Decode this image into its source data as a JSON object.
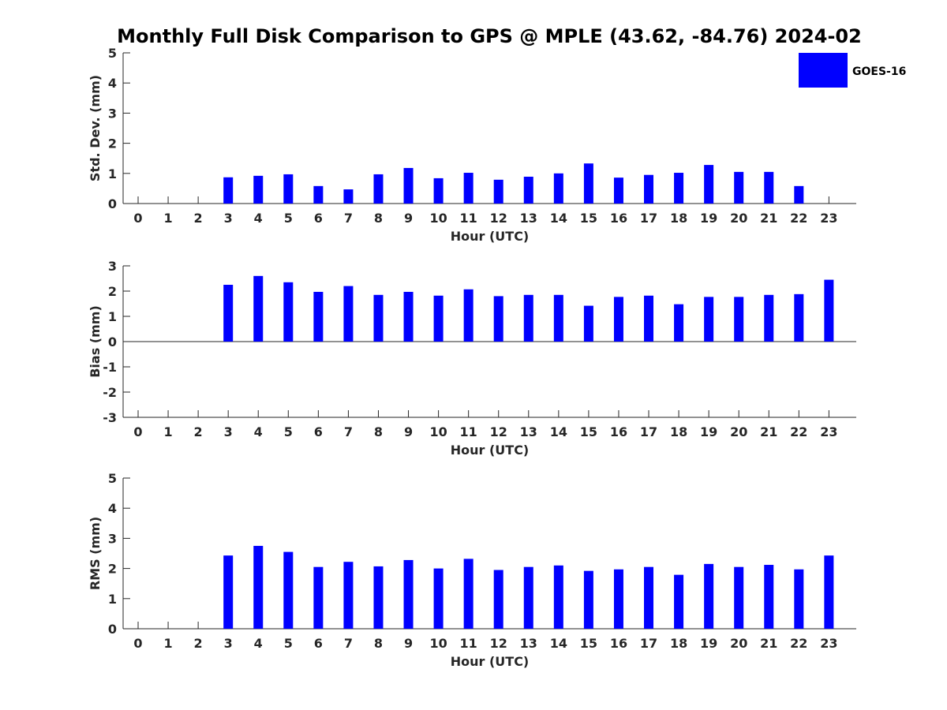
{
  "title": "Monthly Full Disk Comparison to GPS @ MPLE (43.62, -84.76) 2024-02",
  "legend": {
    "label": "GOES-16",
    "color": "#0000ff"
  },
  "chart_data": [
    {
      "type": "bar",
      "ylabel": "Std. Dev. (mm)",
      "xlabel": "Hour (UTC)",
      "categories": [
        "0",
        "1",
        "2",
        "3",
        "4",
        "5",
        "6",
        "7",
        "8",
        "9",
        "10",
        "11",
        "12",
        "13",
        "14",
        "15",
        "16",
        "17",
        "18",
        "19",
        "20",
        "21",
        "22",
        "23"
      ],
      "ylim": [
        0,
        5
      ],
      "yticks": [
        "0",
        "1",
        "2",
        "3",
        "4",
        "5"
      ],
      "values": [
        null,
        null,
        null,
        0.87,
        0.92,
        0.97,
        0.58,
        0.47,
        0.97,
        1.18,
        0.84,
        1.02,
        0.79,
        0.89,
        1.0,
        1.33,
        0.86,
        0.95,
        1.02,
        1.28,
        1.05,
        1.05,
        0.58,
        null
      ]
    },
    {
      "type": "bar",
      "ylabel": "Bias (mm)",
      "xlabel": "Hour (UTC)",
      "categories": [
        "0",
        "1",
        "2",
        "3",
        "4",
        "5",
        "6",
        "7",
        "8",
        "9",
        "10",
        "11",
        "12",
        "13",
        "14",
        "15",
        "16",
        "17",
        "18",
        "19",
        "20",
        "21",
        "22",
        "23"
      ],
      "ylim": [
        -3,
        3
      ],
      "yticks": [
        "-3",
        "-2",
        "-1",
        "0",
        "1",
        "2",
        "3"
      ],
      "values": [
        null,
        null,
        null,
        2.25,
        2.6,
        2.35,
        1.97,
        2.2,
        1.85,
        1.97,
        1.82,
        2.07,
        1.8,
        1.85,
        1.85,
        1.42,
        1.77,
        1.82,
        1.48,
        1.77,
        1.77,
        1.85,
        1.88,
        2.45
      ]
    },
    {
      "type": "bar",
      "ylabel": "RMS (mm)",
      "xlabel": "Hour (UTC)",
      "categories": [
        "0",
        "1",
        "2",
        "3",
        "4",
        "5",
        "6",
        "7",
        "8",
        "9",
        "10",
        "11",
        "12",
        "13",
        "14",
        "15",
        "16",
        "17",
        "18",
        "19",
        "20",
        "21",
        "22",
        "23"
      ],
      "ylim": [
        0,
        5
      ],
      "yticks": [
        "0",
        "1",
        "2",
        "3",
        "4",
        "5"
      ],
      "values": [
        null,
        null,
        null,
        2.43,
        2.75,
        2.55,
        2.05,
        2.22,
        2.07,
        2.28,
        2.0,
        2.32,
        1.95,
        2.05,
        2.1,
        1.92,
        1.97,
        2.05,
        1.79,
        2.15,
        2.05,
        2.12,
        1.97,
        2.43
      ]
    }
  ]
}
